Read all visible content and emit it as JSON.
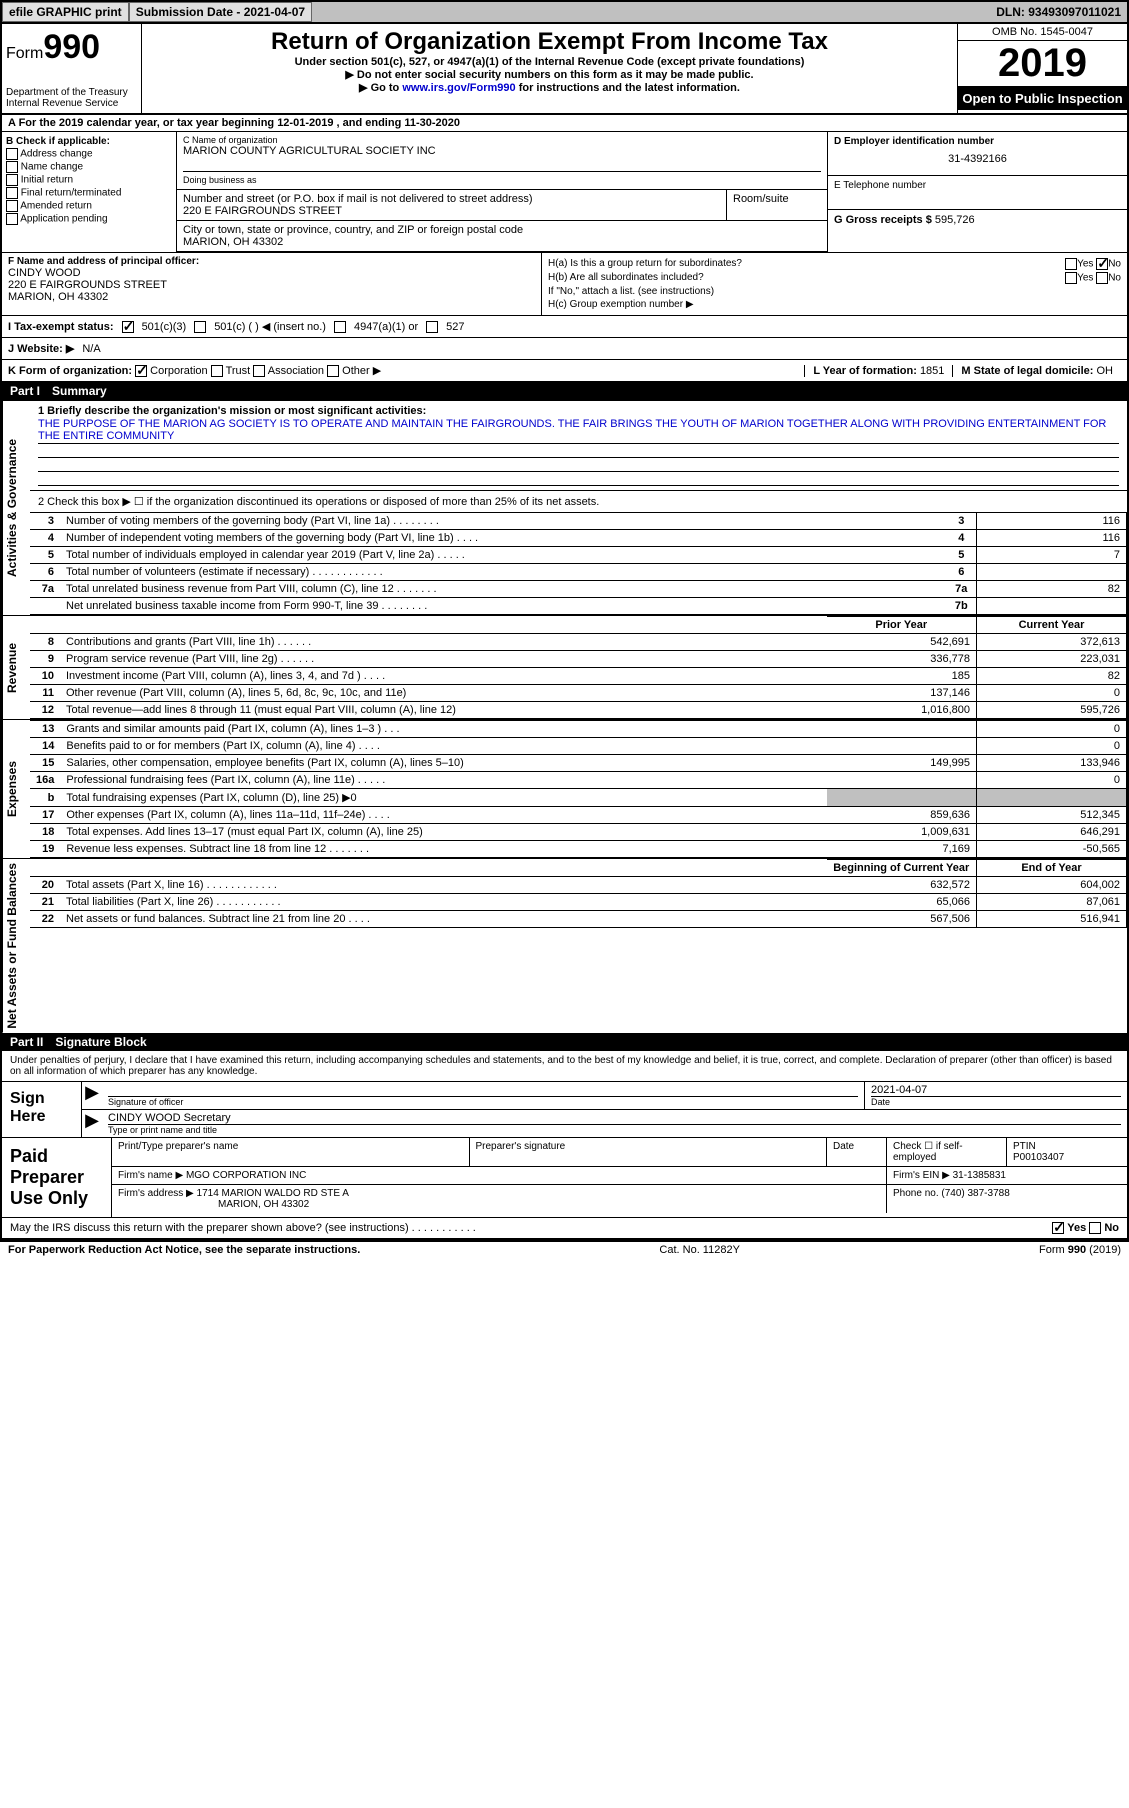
{
  "topbar": {
    "efile": "efile GRAPHIC print",
    "subdate_label": "Submission Date - ",
    "subdate": "2021-04-07",
    "dln_label": "DLN: ",
    "dln": "93493097011021"
  },
  "header": {
    "form_prefix": "Form",
    "form_num": "990",
    "dept1": "Department of the Treasury",
    "dept2": "Internal Revenue Service",
    "title": "Return of Organization Exempt From Income Tax",
    "sub1": "Under section 501(c), 527, or 4947(a)(1) of the Internal Revenue Code (except private foundations)",
    "sub2": "▶ Do not enter social security numbers on this form as it may be made public.",
    "sub3_pre": "▶ Go to ",
    "sub3_link": "www.irs.gov/Form990",
    "sub3_post": " for instructions and the latest information.",
    "omb": "OMB No. 1545-0047",
    "year": "2019",
    "inspect": "Open to Public Inspection"
  },
  "period": "A For the 2019 calendar year, or tax year beginning 12-01-2019   , and ending 11-30-2020",
  "B": {
    "label": "B Check if applicable:",
    "opts": [
      "Address change",
      "Name change",
      "Initial return",
      "Final return/terminated",
      "Amended return",
      "Application pending"
    ]
  },
  "C": {
    "name_lbl": "C Name of organization",
    "name": "MARION COUNTY AGRICULTURAL SOCIETY INC",
    "dba_lbl": "Doing business as",
    "addr_lbl": "Number and street (or P.O. box if mail is not delivered to street address)",
    "addr": "220 E FAIRGROUNDS STREET",
    "room_lbl": "Room/suite",
    "city_lbl": "City or town, state or province, country, and ZIP or foreign postal code",
    "city": "MARION, OH  43302"
  },
  "D": {
    "lbl": "D Employer identification number",
    "val": "31-4392166"
  },
  "E": {
    "lbl": "E Telephone number",
    "val": ""
  },
  "G": {
    "lbl": "G Gross receipts $ ",
    "val": "595,726"
  },
  "F": {
    "lbl": "F  Name and address of principal officer:",
    "name": "CINDY WOOD",
    "addr1": "220 E FAIRGROUNDS STREET",
    "addr2": "MARION, OH  43302"
  },
  "H": {
    "a": "H(a)  Is this a group return for subordinates?",
    "b": "H(b)  Are all subordinates included?",
    "b_note": "If \"No,\" attach a list. (see instructions)",
    "c": "H(c)  Group exemption number ▶",
    "yes": "Yes",
    "no": "No"
  },
  "I": {
    "lbl": "I  Tax-exempt status:",
    "o1": "501(c)(3)",
    "o2": "501(c) (   ) ◀ (insert no.)",
    "o3": "4947(a)(1) or",
    "o4": "527"
  },
  "J": {
    "lbl": "J  Website: ▶",
    "val": "N/A"
  },
  "K": {
    "lbl": "K Form of organization:",
    "o1": "Corporation",
    "o2": "Trust",
    "o3": "Association",
    "o4": "Other ▶"
  },
  "L": {
    "lbl": "L Year of formation: ",
    "val": "1851"
  },
  "M": {
    "lbl": "M State of legal domicile: ",
    "val": "OH"
  },
  "part1": {
    "num": "Part I",
    "title": "Summary"
  },
  "vtabs": {
    "ag": "Activities & Governance",
    "rev": "Revenue",
    "exp": "Expenses",
    "na": "Net Assets or Fund Balances"
  },
  "line1": {
    "lbl": "1  Briefly describe the organization's mission or most significant activities:",
    "text": "THE PURPOSE OF THE MARION AG SOCIETY IS TO OPERATE AND MAINTAIN THE FAIRGROUNDS. THE FAIR BRINGS THE YOUTH OF MARION TOGETHER ALONG WITH PROVIDING ENTERTAINMENT FOR THE ENTIRE COMMUNITY"
  },
  "line2": "2   Check this box ▶ ☐  if the organization discontinued its operations or disposed of more than 25% of its net assets.",
  "ag_rows": [
    {
      "n": "3",
      "d": "Number of voting members of the governing body (Part VI, line 1a)  .   .   .   .   .   .   .   .",
      "b": "3",
      "v": "116"
    },
    {
      "n": "4",
      "d": "Number of independent voting members of the governing body (Part VI, line 1b)  .   .   .   .",
      "b": "4",
      "v": "116"
    },
    {
      "n": "5",
      "d": "Total number of individuals employed in calendar year 2019 (Part V, line 2a)  .   .   .   .   .",
      "b": "5",
      "v": "7"
    },
    {
      "n": "6",
      "d": "Total number of volunteers (estimate if necessary)   .   .   .   .   .   .   .   .   .   .   .   .",
      "b": "6",
      "v": ""
    },
    {
      "n": "7a",
      "d": "Total unrelated business revenue from Part VIII, column (C), line 12  .   .   .   .   .   .   .",
      "b": "7a",
      "v": "82"
    },
    {
      "n": "",
      "d": "Net unrelated business taxable income from Form 990-T, line 39   .   .   .   .   .   .   .   .",
      "b": "7b",
      "v": ""
    }
  ],
  "py_hdr": "Prior Year",
  "cy_hdr": "Current Year",
  "rev_rows": [
    {
      "n": "8",
      "d": "Contributions and grants (Part VIII, line 1h)   .   .   .   .   .   .",
      "py": "542,691",
      "cy": "372,613"
    },
    {
      "n": "9",
      "d": "Program service revenue (Part VIII, line 2g)   .   .   .   .   .   .",
      "py": "336,778",
      "cy": "223,031"
    },
    {
      "n": "10",
      "d": "Investment income (Part VIII, column (A), lines 3, 4, and 7d )   .   .   .   .",
      "py": "185",
      "cy": "82"
    },
    {
      "n": "11",
      "d": "Other revenue (Part VIII, column (A), lines 5, 6d, 8c, 9c, 10c, and 11e)",
      "py": "137,146",
      "cy": "0"
    },
    {
      "n": "12",
      "d": "Total revenue—add lines 8 through 11 (must equal Part VIII, column (A), line 12)",
      "py": "1,016,800",
      "cy": "595,726"
    }
  ],
  "exp_rows": [
    {
      "n": "13",
      "d": "Grants and similar amounts paid (Part IX, column (A), lines 1–3 )  .   .   .",
      "py": "",
      "cy": "0"
    },
    {
      "n": "14",
      "d": "Benefits paid to or for members (Part IX, column (A), line 4)  .   .   .   .",
      "py": "",
      "cy": "0"
    },
    {
      "n": "15",
      "d": "Salaries, other compensation, employee benefits (Part IX, column (A), lines 5–10)",
      "py": "149,995",
      "cy": "133,946"
    },
    {
      "n": "16a",
      "d": "Professional fundraising fees (Part IX, column (A), line 11e)  .   .   .   .   .",
      "py": "",
      "cy": "0"
    },
    {
      "n": "b",
      "d": "Total fundraising expenses (Part IX, column (D), line 25) ▶0",
      "py": "SHADE",
      "cy": "SHADE"
    },
    {
      "n": "17",
      "d": "Other expenses (Part IX, column (A), lines 11a–11d, 11f–24e)  .   .   .   .",
      "py": "859,636",
      "cy": "512,345"
    },
    {
      "n": "18",
      "d": "Total expenses. Add lines 13–17 (must equal Part IX, column (A), line 25)",
      "py": "1,009,631",
      "cy": "646,291"
    },
    {
      "n": "19",
      "d": "Revenue less expenses. Subtract line 18 from line 12 .   .   .   .   .   .   .",
      "py": "7,169",
      "cy": "-50,565"
    }
  ],
  "by_hdr": "Beginning of Current Year",
  "ey_hdr": "End of Year",
  "na_rows": [
    {
      "n": "20",
      "d": "Total assets (Part X, line 16)  .   .   .   .   .   .   .   .   .   .   .   .",
      "py": "632,572",
      "cy": "604,002"
    },
    {
      "n": "21",
      "d": "Total liabilities (Part X, line 26)  .   .   .   .   .   .   .   .   .   .   .",
      "py": "65,066",
      "cy": "87,061"
    },
    {
      "n": "22",
      "d": "Net assets or fund balances. Subtract line 21 from line 20  .   .   .   .",
      "py": "567,506",
      "cy": "516,941"
    }
  ],
  "part2": {
    "num": "Part II",
    "title": "Signature Block"
  },
  "sig_intro": "Under penalties of perjury, I declare that I have examined this return, including accompanying schedules and statements, and to the best of my knowledge and belief, it is true, correct, and complete. Declaration of preparer (other than officer) is based on all information of which preparer has any knowledge.",
  "sign": {
    "here": "Sign Here",
    "sig_lbl": "Signature of officer",
    "date_lbl": "Date",
    "date": "2021-04-07",
    "name": "CINDY WOOD  Secretary",
    "name_lbl": "Type or print name and title"
  },
  "prep": {
    "label": "Paid Preparer Use Only",
    "r1": {
      "c1": "Print/Type preparer's name",
      "c2": "Preparer's signature",
      "c3": "Date",
      "c4": "Check ☐ if self-employed",
      "c5_lbl": "PTIN",
      "c5": "P00103407"
    },
    "r2": {
      "lbl": "Firm's name    ▶ ",
      "val": "MGO CORPORATION INC",
      "ein_lbl": "Firm's EIN ▶ ",
      "ein": "31-1385831"
    },
    "r3": {
      "lbl": "Firm's address ▶ ",
      "val1": "1714 MARION WALDO RD STE A",
      "val2": "MARION, OH  43302",
      "ph_lbl": "Phone no. ",
      "ph": "(740) 387-3788"
    }
  },
  "discuss": "May the IRS discuss this return with the preparer shown above? (see instructions)   .   .   .   .   .   .   .   .   .   .   .",
  "footer": {
    "left": "For Paperwork Reduction Act Notice, see the separate instructions.",
    "mid": "Cat. No. 11282Y",
    "right": "Form 990 (2019)"
  }
}
